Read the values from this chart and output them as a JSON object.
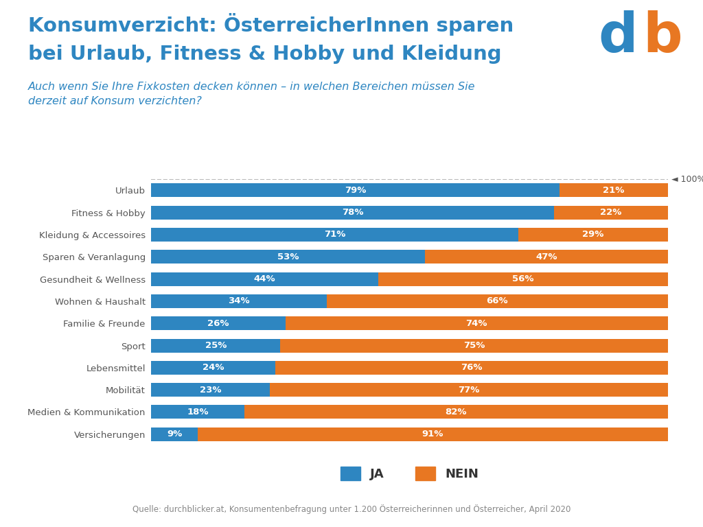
{
  "title_line1": "Konsumverzicht: ÖsterreicherInnen sparen",
  "title_line2": "bei Urlaub, Fitness & Hobby und Kleidung",
  "subtitle": "Auch wenn Sie Ihre Fixkosten decken können – in welchen Bereichen müssen Sie\nderzeit auf Konsum verzichten?",
  "source": "Quelle: durchblicker.at, Konsumentenbefragung unter 1.200 Österreicherinnen und Österreicher, April 2020",
  "categories": [
    "Urlaub",
    "Fitness & Hobby",
    "Kleidung & Accessoires",
    "Sparen & Veranlagung",
    "Gesundheit & Wellness",
    "Wohnen & Haushalt",
    "Familie & Freunde",
    "Sport",
    "Lebensmittel",
    "Mobilität",
    "Medien & Kommunikation",
    "Versicherungen"
  ],
  "ja_values": [
    79,
    78,
    71,
    53,
    44,
    34,
    26,
    25,
    24,
    23,
    18,
    9
  ],
  "nein_values": [
    21,
    22,
    29,
    47,
    56,
    66,
    74,
    75,
    76,
    77,
    82,
    91
  ],
  "blue_color": "#2E86C1",
  "orange_color": "#E87722",
  "title_color": "#2E86C1",
  "subtitle_color": "#2E86C1",
  "bar_height": 0.62,
  "background_color": "#FFFFFF",
  "text_color_white": "#FFFFFF",
  "legend_ja": "JA",
  "legend_nein": "NEIN",
  "dashed_line_color": "#AAAAAA",
  "marker_100_label": "◄ 100%",
  "source_color": "#888888",
  "label_color": "#555555"
}
